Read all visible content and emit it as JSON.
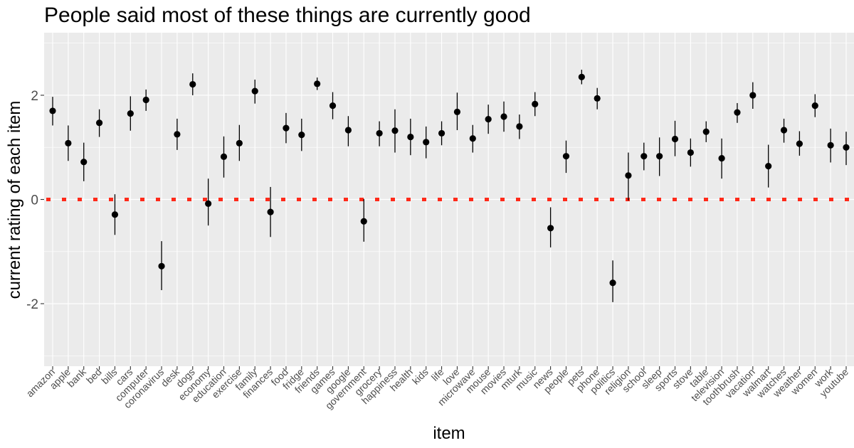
{
  "chart_data": {
    "type": "scatter",
    "title": "People said most of these things are currently good",
    "xlabel": "item",
    "ylabel": "current rating of each item",
    "ylim": [
      -3.2,
      3.2
    ],
    "y_ticks": [
      -2,
      0,
      2
    ],
    "y_tick_labels": [
      "-2",
      "0",
      "2"
    ],
    "grid": true,
    "reference_line": {
      "y": 0,
      "style": "dotted",
      "color": "#ff2a1a"
    },
    "categories": [
      "amazon",
      "apple",
      "bank",
      "bed",
      "bills",
      "cars",
      "computer",
      "coronavirus",
      "desk",
      "dogs",
      "economy",
      "education",
      "exercise",
      "family",
      "finances",
      "food",
      "fridge",
      "friends",
      "games",
      "google",
      "government",
      "grocery",
      "happiness",
      "health",
      "kids",
      "life",
      "love",
      "microwave",
      "mouse",
      "movies",
      "mturk",
      "music",
      "news",
      "people",
      "pets",
      "phone",
      "politics",
      "religion",
      "school",
      "sleep",
      "sports",
      "stove",
      "table",
      "television",
      "toothbrush",
      "vacation",
      "walmart",
      "watches",
      "weather",
      "women",
      "work",
      "youtube"
    ],
    "series": [
      {
        "values": [
          1.7,
          1.08,
          0.72,
          1.47,
          -0.29,
          1.65,
          1.91,
          -1.28,
          1.25,
          2.21,
          -0.08,
          0.82,
          1.08,
          2.08,
          -0.24,
          1.37,
          1.24,
          2.22,
          1.8,
          1.33,
          -0.42,
          1.27,
          1.32,
          1.2,
          1.1,
          1.27,
          1.68,
          1.17,
          1.54,
          1.59,
          1.4,
          1.83,
          -0.55,
          0.83,
          2.35,
          1.94,
          -1.6,
          0.46,
          0.83,
          0.83,
          1.16,
          0.9,
          1.3,
          0.79,
          1.67,
          2.0,
          0.64,
          1.33,
          1.07,
          1.8,
          1.04,
          1.0
        ],
        "lower": [
          1.42,
          0.74,
          0.35,
          1.2,
          -0.68,
          1.32,
          1.7,
          -1.74,
          0.95,
          2.0,
          -0.5,
          0.42,
          0.74,
          1.84,
          -0.72,
          1.08,
          0.93,
          2.1,
          1.54,
          1.02,
          -0.81,
          1.02,
          0.9,
          0.85,
          0.79,
          1.04,
          1.33,
          0.9,
          1.26,
          1.3,
          1.16,
          1.6,
          -0.92,
          0.51,
          2.21,
          1.73,
          -1.97,
          -0.02,
          0.56,
          0.45,
          0.83,
          0.63,
          1.1,
          0.4,
          1.47,
          1.74,
          0.23,
          1.09,
          0.84,
          1.58,
          0.71,
          0.66
        ],
        "upper": [
          1.97,
          1.42,
          1.09,
          1.73,
          0.1,
          1.98,
          2.11,
          -0.8,
          1.55,
          2.42,
          0.4,
          1.21,
          1.43,
          2.3,
          0.24,
          1.66,
          1.55,
          2.34,
          2.06,
          1.6,
          0.01,
          1.5,
          1.73,
          1.55,
          1.4,
          1.5,
          2.05,
          1.43,
          1.82,
          1.88,
          1.63,
          2.06,
          -0.15,
          1.13,
          2.49,
          2.14,
          -1.17,
          0.9,
          1.09,
          1.19,
          1.51,
          1.17,
          1.5,
          1.17,
          1.85,
          2.25,
          1.05,
          1.55,
          1.31,
          2.02,
          1.36,
          1.3
        ]
      }
    ],
    "colors": {
      "panel": "#ebebeb",
      "grid_major": "#ffffff",
      "points": "#000000",
      "reference": "#ff2a1a"
    }
  }
}
